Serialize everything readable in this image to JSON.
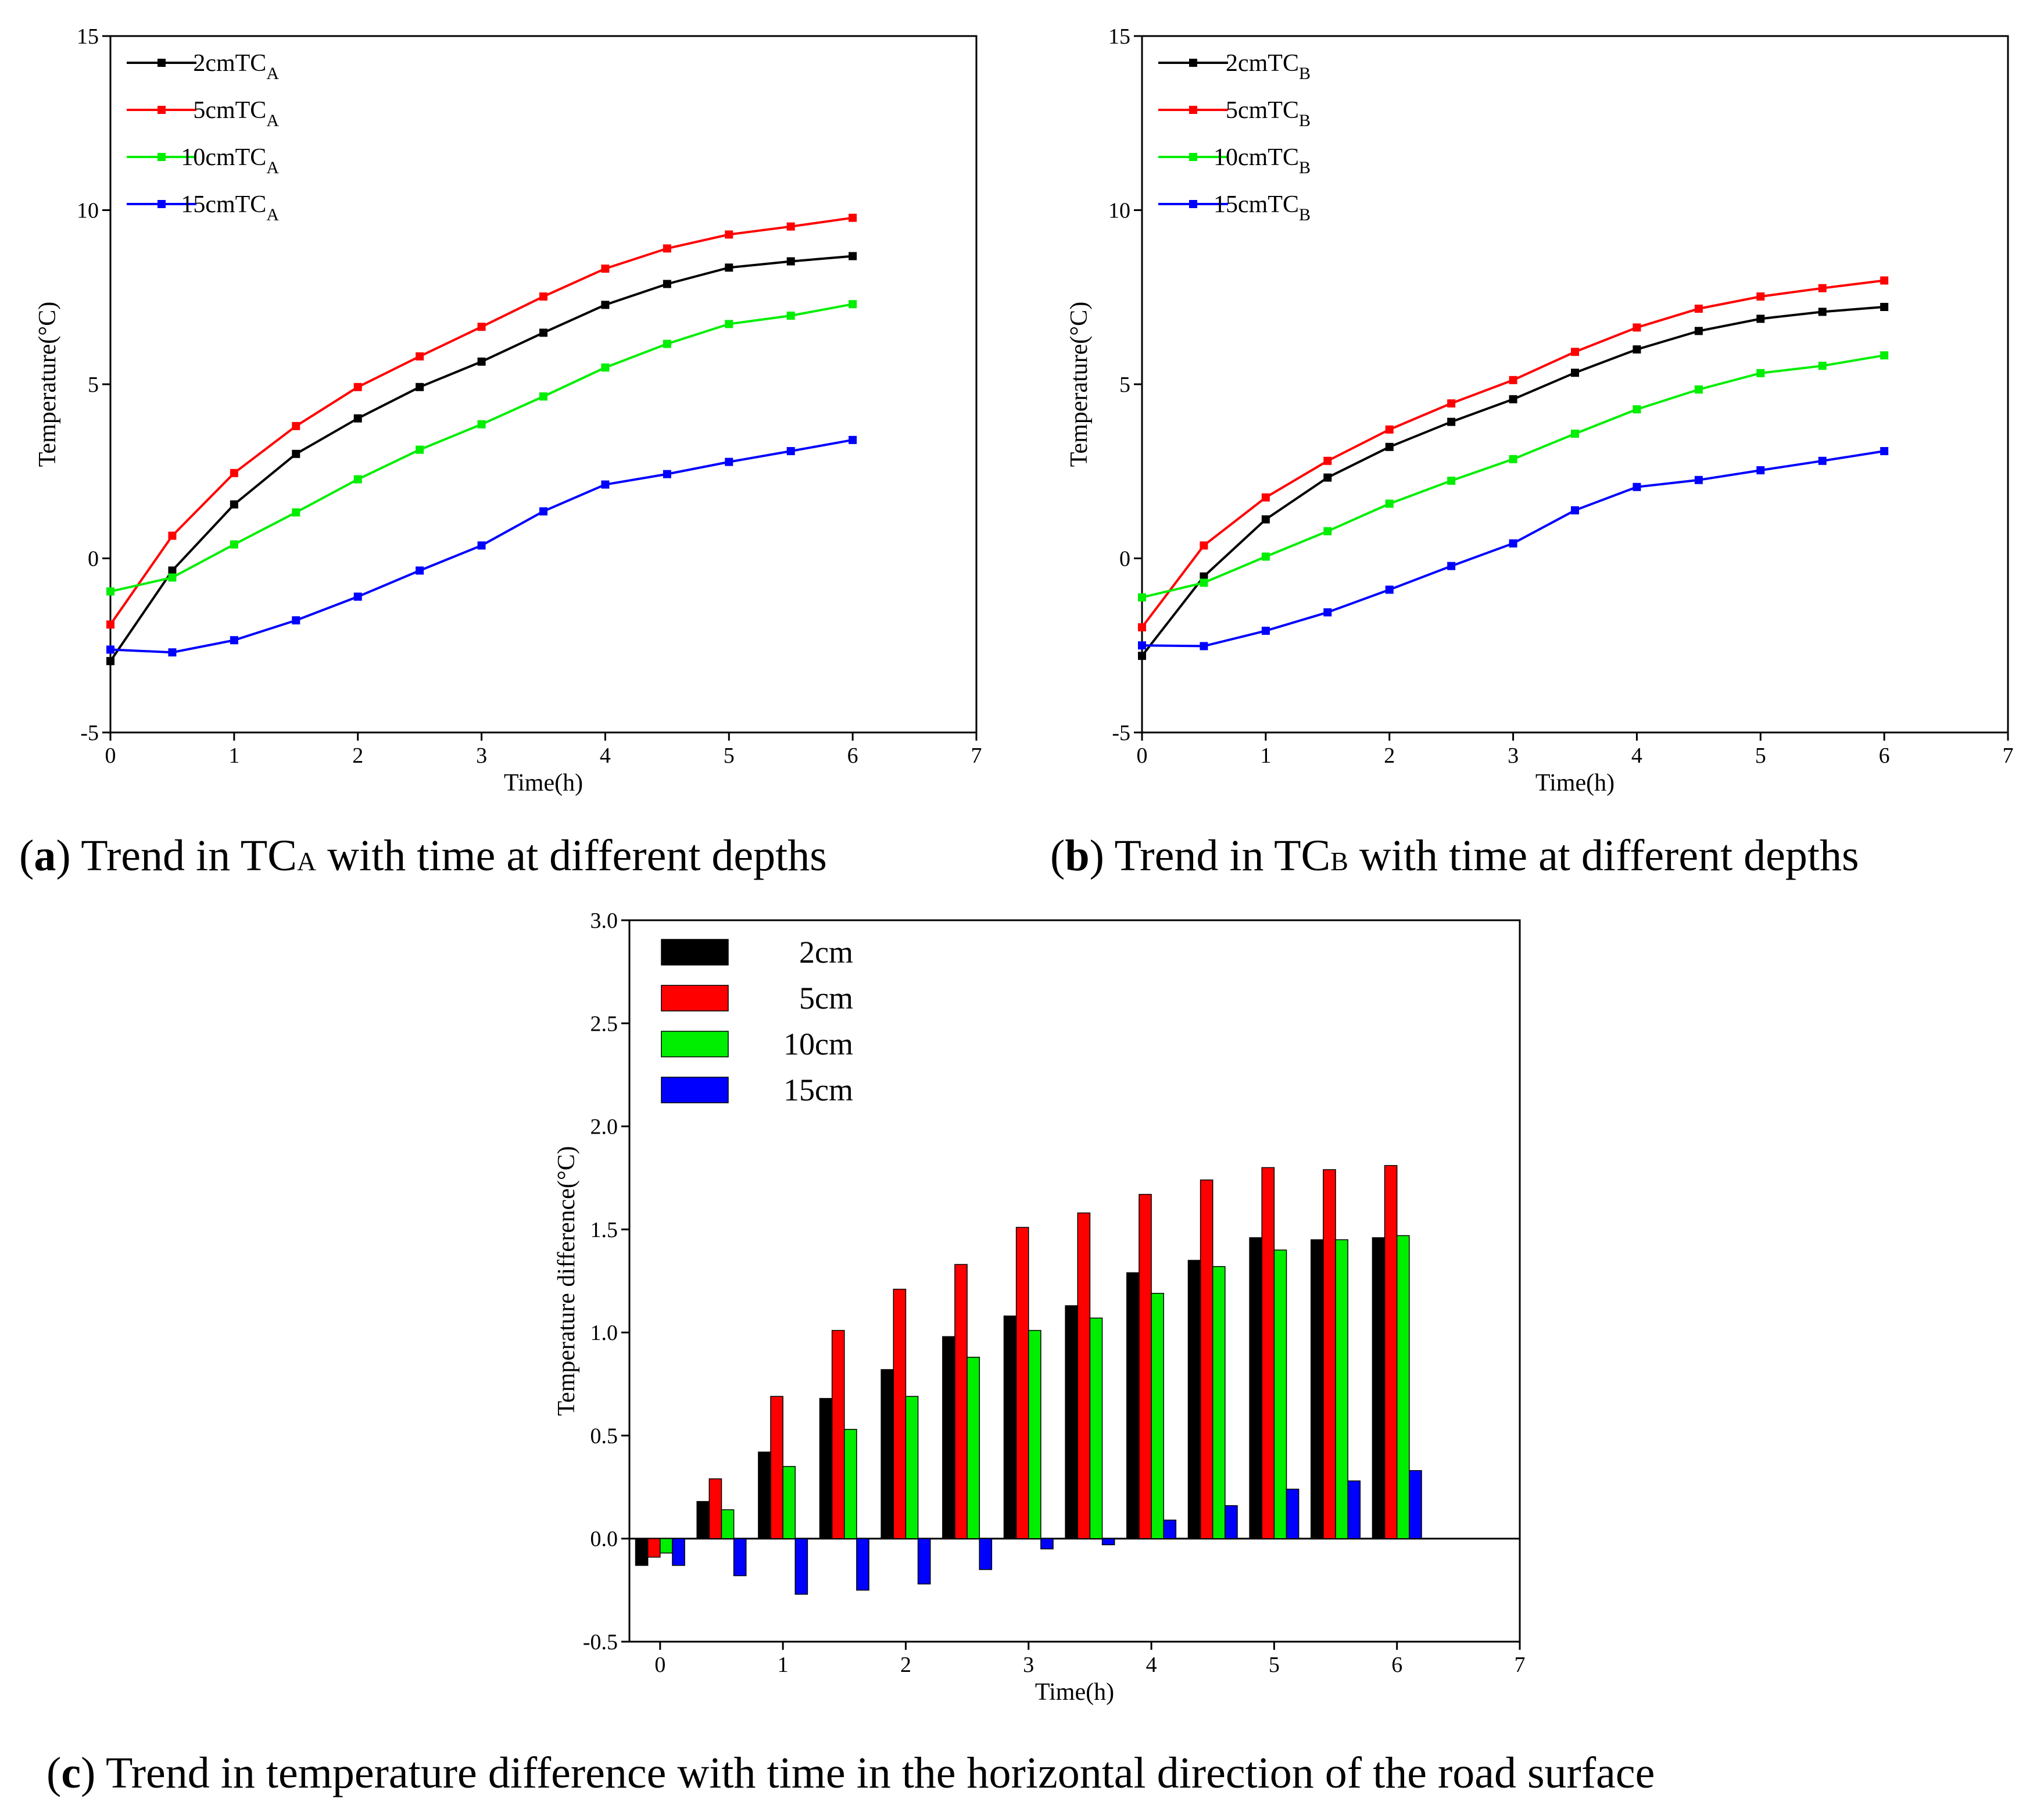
{
  "chart_data": [
    {
      "id": "a",
      "type": "line",
      "xlabel": "Time(h)",
      "ylabel": "Temperature(°C)",
      "xlim": [
        0,
        7
      ],
      "ylim": [
        -5,
        15
      ],
      "xticks": [
        "0",
        "1",
        "2",
        "3",
        "4",
        "5",
        "6",
        "7"
      ],
      "yticks": [
        "-5",
        "0",
        "5",
        "10",
        "15"
      ],
      "x": [
        0,
        0.5,
        1,
        1.5,
        2,
        2.5,
        3,
        3.5,
        4,
        4.5,
        5,
        5.5,
        6
      ],
      "legend_position": "top-left",
      "series": [
        {
          "name": "2cmTC",
          "sub": "A",
          "color": "#000000",
          "values": [
            -2.95,
            -0.35,
            1.55,
            3.0,
            4.02,
            4.92,
            5.65,
            6.48,
            7.28,
            7.88,
            8.35,
            8.53,
            8.68
          ]
        },
        {
          "name": "5cmTC",
          "sub": "A",
          "color": "#ff0000",
          "values": [
            -1.9,
            0.65,
            2.45,
            3.8,
            4.92,
            5.8,
            6.65,
            7.52,
            8.32,
            8.9,
            9.3,
            9.53,
            9.78
          ]
        },
        {
          "name": "10cmTC",
          "sub": "A",
          "color": "#00ee00",
          "values": [
            -0.95,
            -0.55,
            0.4,
            1.32,
            2.27,
            3.12,
            3.85,
            4.65,
            5.48,
            6.16,
            6.73,
            6.97,
            7.3
          ]
        },
        {
          "name": "15cmTC",
          "sub": "A",
          "color": "#0000ff",
          "values": [
            -2.62,
            -2.7,
            -2.35,
            -1.78,
            -1.1,
            -0.35,
            0.37,
            1.35,
            2.12,
            2.42,
            2.77,
            3.08,
            3.4
          ]
        }
      ],
      "caption": {
        "label": "a",
        "text_before": "Trend in TC",
        "sub": "A",
        "text_after": "with time at different depths"
      }
    },
    {
      "id": "b",
      "type": "line",
      "xlabel": "Time(h)",
      "ylabel": "Temperature(°C)",
      "xlim": [
        0,
        7
      ],
      "ylim": [
        -5,
        15
      ],
      "xticks": [
        "0",
        "1",
        "2",
        "3",
        "4",
        "5",
        "6",
        "7"
      ],
      "yticks": [
        "-5",
        "0",
        "5",
        "10",
        "15"
      ],
      "x": [
        0,
        0.5,
        1,
        1.5,
        2,
        2.5,
        3,
        3.5,
        4,
        4.5,
        5,
        5.5,
        6
      ],
      "legend_position": "top-left",
      "series": [
        {
          "name": "2cmTC",
          "sub": "B",
          "color": "#000000",
          "values": [
            -2.8,
            -0.52,
            1.12,
            2.32,
            3.2,
            3.92,
            4.57,
            5.33,
            6.0,
            6.53,
            6.88,
            7.08,
            7.22
          ]
        },
        {
          "name": "5cmTC",
          "sub": "B",
          "color": "#ff0000",
          "values": [
            -1.98,
            0.37,
            1.75,
            2.8,
            3.7,
            4.45,
            5.12,
            5.93,
            6.63,
            7.17,
            7.52,
            7.76,
            7.98
          ]
        },
        {
          "name": "10cmTC",
          "sub": "B",
          "color": "#00ee00",
          "values": [
            -1.12,
            -0.7,
            0.05,
            0.78,
            1.57,
            2.23,
            2.85,
            3.58,
            4.28,
            4.85,
            5.32,
            5.53,
            5.83
          ]
        },
        {
          "name": "15cmTC",
          "sub": "B",
          "color": "#0000ff",
          "values": [
            -2.5,
            -2.52,
            -2.08,
            -1.55,
            -0.9,
            -0.22,
            0.43,
            1.38,
            2.05,
            2.25,
            2.53,
            2.8,
            3.08
          ]
        }
      ],
      "caption": {
        "label": "b",
        "text_before": "Trend in TC",
        "sub": "B",
        "text_after": "with time at different depths"
      }
    },
    {
      "id": "c",
      "type": "bar",
      "xlabel": "Time(h)",
      "ylabel": "Temperature difference(°C)",
      "xlim": [
        -0.25,
        7
      ],
      "ylim": [
        -0.5,
        3.0
      ],
      "xticks": [
        "0",
        "1",
        "2",
        "3",
        "4",
        "5",
        "6",
        "7"
      ],
      "yticks": [
        "-0.5",
        "0.0",
        "0.5",
        "1.0",
        "1.5",
        "2.0",
        "2.5",
        "3.0"
      ],
      "x": [
        0,
        0.5,
        1,
        1.5,
        2,
        2.5,
        3,
        3.5,
        4,
        4.5,
        5,
        5.5,
        6
      ],
      "legend_position": "top-left",
      "series": [
        {
          "name": "2cm",
          "color": "#000000",
          "values": [
            -0.13,
            0.18,
            0.42,
            0.68,
            0.82,
            0.98,
            1.08,
            1.13,
            1.29,
            1.35,
            1.46,
            1.45,
            1.46
          ]
        },
        {
          "name": "5cm",
          "color": "#ff0000",
          "values": [
            -0.09,
            0.29,
            0.69,
            1.01,
            1.21,
            1.33,
            1.51,
            1.58,
            1.67,
            1.74,
            1.8,
            1.79,
            1.81
          ]
        },
        {
          "name": "10cm",
          "color": "#00ee00",
          "values": [
            -0.07,
            0.14,
            0.35,
            0.53,
            0.69,
            0.88,
            1.01,
            1.07,
            1.19,
            1.32,
            1.4,
            1.45,
            1.47
          ]
        },
        {
          "name": "15cm",
          "color": "#0000ff",
          "values": [
            -0.13,
            -0.18,
            -0.27,
            -0.25,
            -0.22,
            -0.15,
            -0.05,
            -0.03,
            0.09,
            0.16,
            0.24,
            0.28,
            0.33
          ]
        }
      ],
      "caption": {
        "label": "c",
        "text": "Trend in temperature difference with time in the horizontal direction of the road surface"
      }
    }
  ]
}
